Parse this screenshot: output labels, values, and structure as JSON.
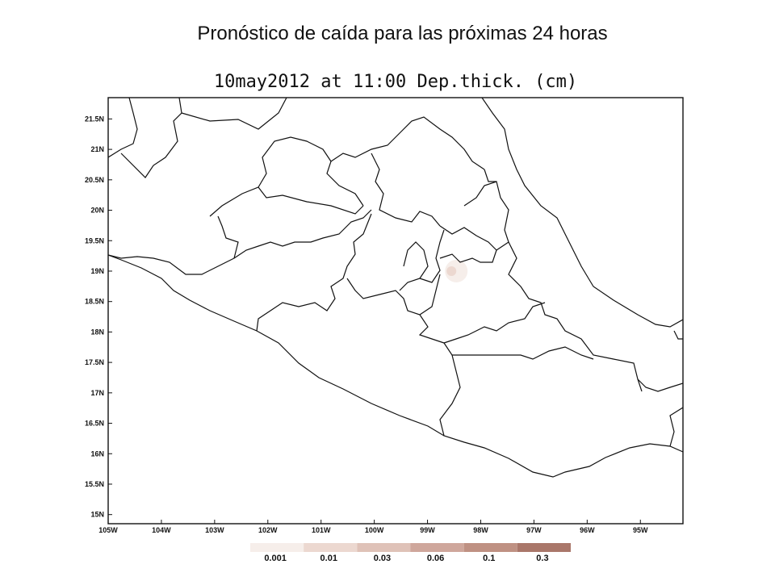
{
  "slide": {
    "title": "Pronóstico de caída para las próximas 24 horas"
  },
  "map": {
    "title": "10may2012 at 11:00 Dep.thick. (cm)",
    "lat_labels": [
      "21.5N",
      "21N",
      "20.5N",
      "20N",
      "19.5N",
      "19N",
      "18.5N",
      "18N",
      "17.5N",
      "17N",
      "16.5N",
      "16N",
      "15.5N",
      "15N"
    ],
    "lon_labels": [
      "105W",
      "104W",
      "103W",
      "102W",
      "101W",
      "100W",
      "99W",
      "98W",
      "97W",
      "96W",
      "95W"
    ],
    "plume": {
      "lon": -98.55,
      "lat": 19.0,
      "level": "0.001"
    }
  },
  "legend": {
    "levels": [
      "0.001",
      "0.01",
      "0.03",
      "0.06",
      "0.1",
      "0.3"
    ],
    "colors": [
      "#f6eeea",
      "#ecd8d0",
      "#dfc2b8",
      "#cfa79c",
      "#bf9183",
      "#aa776a"
    ],
    "unit": "cm"
  }
}
